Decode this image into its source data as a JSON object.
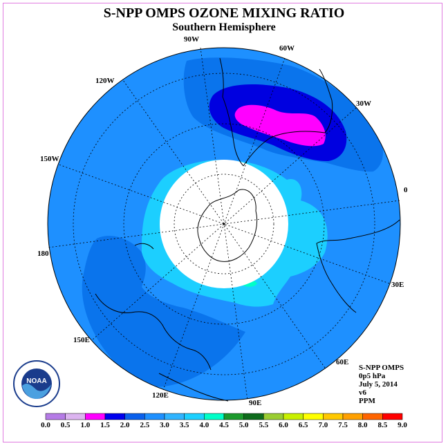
{
  "title": "S-NPP OMPS OZONE MIXING RATIO",
  "subtitle": "Southern Hemisphere",
  "info": {
    "line1": "S-NPP OMPS",
    "line2": "0p5 hPa",
    "line3": "July 5, 2014",
    "line4": "v6",
    "line5": "PPM"
  },
  "logo_text": "NOAA",
  "longitude_labels": [
    "90W",
    "60W",
    "120W",
    "30W",
    "150W",
    "0",
    "180",
    "30E",
    "150E",
    "60E",
    "120E",
    "90E"
  ],
  "colorbar": {
    "ticks": [
      "0.0",
      "0.5",
      "1.0",
      "1.5",
      "2.0",
      "2.5",
      "3.0",
      "3.5",
      "4.0",
      "4.5",
      "5.0",
      "5.5",
      "6.0",
      "6.5",
      "7.0",
      "7.5",
      "8.0",
      "8.5",
      "9.0"
    ],
    "colors": [
      "#b57be6",
      "#dcb4f0",
      "#ff00ff",
      "#0000ee",
      "#0a60ec",
      "#1e90ff",
      "#30b4ff",
      "#1cd0ff",
      "#00ffc8",
      "#1c9a2c",
      "#0e6b1c",
      "#9acd32",
      "#c8f000",
      "#ffff00",
      "#ffc800",
      "#ffa000",
      "#ff6400",
      "#ff0000",
      "#7a5a3a"
    ]
  },
  "map_colors": {
    "background_field": "#1e90ff",
    "light_field": "#1ccfff",
    "mid_field": "#0a74ec",
    "dark_field": "#0000e0",
    "max_field": "#ff00ff",
    "cyan_spot": "#00ffc8"
  }
}
